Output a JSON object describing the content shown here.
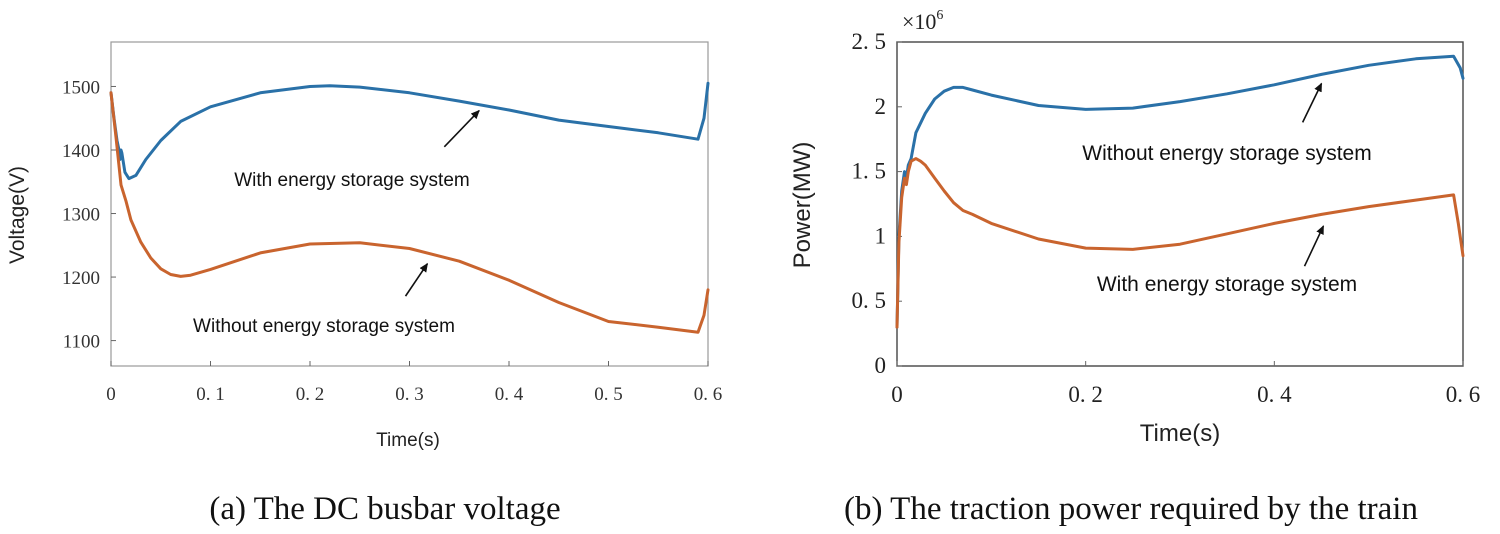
{
  "colors": {
    "blue": "#2a71a8",
    "orange": "#c9642e",
    "axis": "#333333",
    "arrow": "#111111"
  },
  "chart_data": [
    {
      "id": "a",
      "type": "line",
      "title": "",
      "caption": "(a) The DC busbar voltage",
      "xlabel": "Time(s)",
      "ylabel": "Voltage(V)",
      "xlim": [
        0,
        0.6
      ],
      "ylim": [
        1060,
        1570
      ],
      "xticks": [
        0,
        0.1,
        0.2,
        0.3,
        0.4,
        0.5,
        0.6
      ],
      "xtick_labels": [
        "0",
        "0. 1",
        "0. 2",
        "0. 3",
        "0. 4",
        "0. 5",
        "0. 6"
      ],
      "yticks": [
        1100,
        1200,
        1300,
        1400,
        1500
      ],
      "ytick_labels": [
        "1100",
        "1200",
        "1300",
        "1400",
        "1500"
      ],
      "series": [
        {
          "name": "With energy storage system",
          "color": "blue",
          "x": [
            0,
            0.003,
            0.006,
            0.008,
            0.009,
            0.01,
            0.011,
            0.014,
            0.018,
            0.025,
            0.035,
            0.05,
            0.07,
            0.1,
            0.15,
            0.2,
            0.22,
            0.25,
            0.3,
            0.35,
            0.4,
            0.45,
            0.5,
            0.55,
            0.59,
            0.596,
            0.6
          ],
          "y": [
            1490,
            1450,
            1415,
            1400,
            1385,
            1400,
            1395,
            1365,
            1355,
            1360,
            1385,
            1415,
            1445,
            1468,
            1490,
            1500,
            1501,
            1499,
            1490,
            1477,
            1463,
            1447,
            1437,
            1427,
            1417,
            1450,
            1505
          ]
        },
        {
          "name": "Without energy storage system",
          "color": "orange",
          "x": [
            0,
            0.005,
            0.01,
            0.015,
            0.02,
            0.03,
            0.04,
            0.05,
            0.06,
            0.07,
            0.08,
            0.1,
            0.15,
            0.2,
            0.25,
            0.3,
            0.35,
            0.4,
            0.45,
            0.5,
            0.55,
            0.59,
            0.596,
            0.6
          ],
          "y": [
            1490,
            1420,
            1345,
            1320,
            1290,
            1255,
            1230,
            1213,
            1204,
            1201,
            1203,
            1212,
            1238,
            1252,
            1254,
            1245,
            1225,
            1195,
            1160,
            1130,
            1121,
            1113,
            1140,
            1180
          ]
        }
      ],
      "annotations": [
        {
          "text": "With energy storage system",
          "target": [
            0.37,
            1462
          ],
          "tail": [
            0.335,
            1405
          ]
        },
        {
          "text": "Without energy storage system",
          "target": [
            0.318,
            1221
          ],
          "tail": [
            0.296,
            1170
          ]
        }
      ]
    },
    {
      "id": "b",
      "type": "line",
      "title": "",
      "caption": "(b) The traction power required by the train",
      "xlabel": "Time(s)",
      "ylabel": "Power(MW)",
      "y_multiplier": "×10",
      "y_multiplier_exp": "6",
      "xlim": [
        0,
        0.6
      ],
      "ylim": [
        0,
        2.5
      ],
      "xticks": [
        0,
        0.2,
        0.4,
        0.6
      ],
      "xtick_labels": [
        "0",
        "0. 2",
        "0. 4",
        "0. 6"
      ],
      "yticks": [
        0,
        0.5,
        1,
        1.5,
        2,
        2.5
      ],
      "ytick_labels": [
        "0",
        "0. 5",
        "1",
        "1. 5",
        "2",
        "2. 5"
      ],
      "series": [
        {
          "name": "Without energy storage system",
          "color": "blue",
          "x": [
            0,
            0.002,
            0.005,
            0.008,
            0.01,
            0.012,
            0.015,
            0.02,
            0.03,
            0.04,
            0.05,
            0.06,
            0.07,
            0.08,
            0.1,
            0.15,
            0.2,
            0.25,
            0.3,
            0.35,
            0.4,
            0.45,
            0.5,
            0.55,
            0.59,
            0.597,
            0.6
          ],
          "y": [
            0.3,
            1.0,
            1.35,
            1.5,
            1.45,
            1.55,
            1.6,
            1.8,
            1.95,
            2.06,
            2.12,
            2.15,
            2.15,
            2.13,
            2.09,
            2.01,
            1.98,
            1.99,
            2.04,
            2.1,
            2.17,
            2.25,
            2.32,
            2.37,
            2.39,
            2.3,
            2.22
          ]
        },
        {
          "name": "With energy storage system",
          "color": "orange",
          "x": [
            0,
            0.002,
            0.005,
            0.008,
            0.01,
            0.012,
            0.015,
            0.02,
            0.025,
            0.03,
            0.04,
            0.05,
            0.06,
            0.07,
            0.08,
            0.1,
            0.15,
            0.2,
            0.25,
            0.3,
            0.35,
            0.4,
            0.45,
            0.5,
            0.55,
            0.59,
            0.595,
            0.6
          ],
          "y": [
            0.3,
            0.95,
            1.3,
            1.45,
            1.4,
            1.5,
            1.58,
            1.6,
            1.58,
            1.55,
            1.45,
            1.35,
            1.26,
            1.2,
            1.17,
            1.1,
            0.98,
            0.91,
            0.9,
            0.94,
            1.02,
            1.1,
            1.17,
            1.23,
            1.28,
            1.32,
            1.1,
            0.85
          ]
        }
      ],
      "annotations": [
        {
          "text": "Without energy storage system",
          "target": [
            0.45,
            2.18
          ],
          "tail": [
            0.43,
            1.88
          ]
        },
        {
          "text": "With energy storage system",
          "target": [
            0.452,
            1.08
          ],
          "tail": [
            0.432,
            0.77
          ]
        }
      ]
    }
  ]
}
